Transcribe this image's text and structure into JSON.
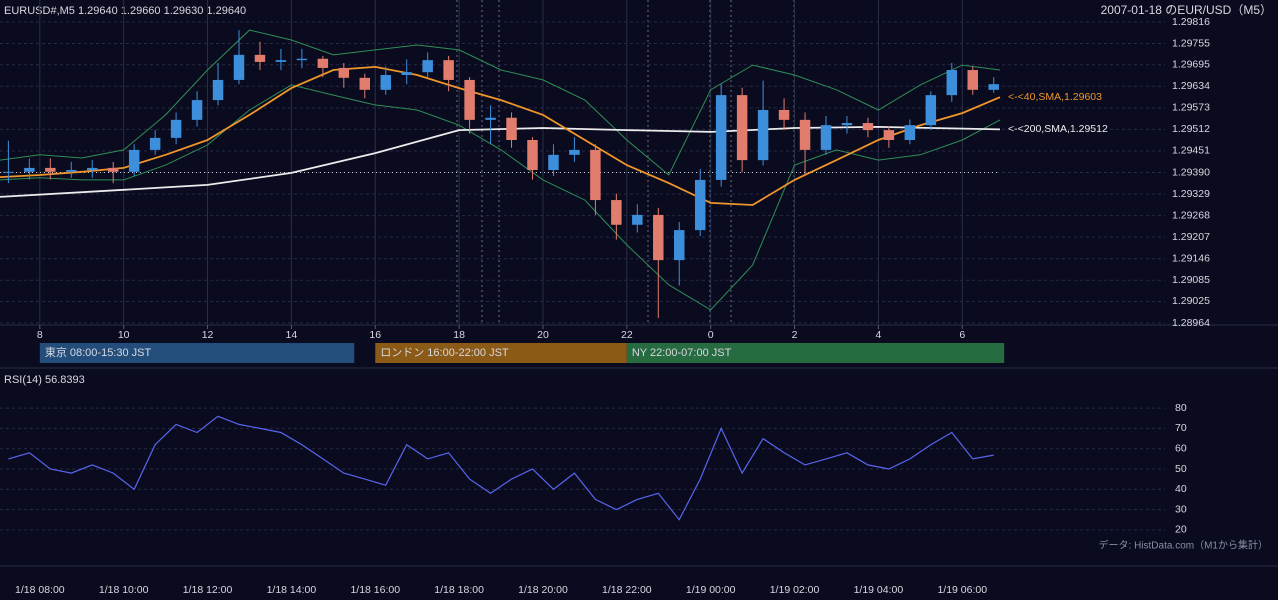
{
  "chart_data": [
    {
      "type": "candlestick",
      "header": "EURUSD#,M5 1.29640 1.29660 1.29630 1.29640",
      "title": "2007-01-18 のEUR/USD（M5）",
      "up_color": "#3d8fdc",
      "down_color": "#e27d6d",
      "x": [
        7.25,
        7.75,
        8.25,
        8.75,
        9.25,
        9.75,
        10.25,
        10.75,
        11.25,
        11.75,
        12.25,
        12.75,
        13.25,
        13.75,
        14.25,
        14.75,
        15.25,
        15.75,
        16.25,
        16.75,
        17.25,
        17.75,
        18.25,
        18.75,
        19.25,
        19.75,
        20.25,
        20.75,
        21.25,
        21.75,
        22.25,
        22.75,
        23.25,
        23.75,
        24.25,
        24.75,
        25.25,
        25.75,
        26.25,
        26.75,
        27.25,
        27.75,
        28.25,
        28.75,
        29.25,
        29.75,
        30.25,
        30.75
      ],
      "open": [
        1.2939,
        1.29392,
        1.29403,
        1.29392,
        1.29397,
        1.29403,
        1.29392,
        1.29454,
        1.29488,
        1.29539,
        1.29595,
        1.29652,
        1.29723,
        1.29703,
        1.29708,
        1.29712,
        1.29686,
        1.29658,
        1.29624,
        1.29666,
        1.29674,
        1.29708,
        1.29652,
        1.29539,
        1.29545,
        1.29482,
        1.29397,
        1.2944,
        1.29454,
        1.29312,
        1.29242,
        1.2927,
        1.29142,
        1.29227,
        1.29369,
        1.29609,
        1.29425,
        1.29567,
        1.29539,
        1.29454,
        1.29524,
        1.2953,
        1.2951,
        1.29482,
        1.29524,
        1.29609,
        1.2968,
        1.29624
      ],
      "high": [
        1.2948,
        1.2943,
        1.2943,
        1.2942,
        1.29425,
        1.2942,
        1.2947,
        1.2951,
        1.2956,
        1.2962,
        1.297,
        1.29793,
        1.2976,
        1.2974,
        1.2974,
        1.2972,
        1.297,
        1.2967,
        1.2969,
        1.2971,
        1.2973,
        1.2972,
        1.2966,
        1.2958,
        1.2956,
        1.2949,
        1.2947,
        1.2949,
        1.2947,
        1.2933,
        1.293,
        1.2929,
        1.2925,
        1.294,
        1.2964,
        1.2963,
        1.2965,
        1.296,
        1.2956,
        1.2955,
        1.2955,
        1.29545,
        1.2952,
        1.2954,
        1.2962,
        1.297,
        1.2969,
        1.2966
      ],
      "low": [
        1.2936,
        1.2937,
        1.2937,
        1.29375,
        1.29375,
        1.2936,
        1.2938,
        1.2944,
        1.2947,
        1.2952,
        1.2958,
        1.2964,
        1.2968,
        1.2968,
        1.29685,
        1.2966,
        1.2963,
        1.296,
        1.2961,
        1.2964,
        1.2966,
        1.2962,
        1.295,
        1.2947,
        1.2946,
        1.2937,
        1.2938,
        1.2942,
        1.2927,
        1.292,
        1.2922,
        1.28978,
        1.2907,
        1.2921,
        1.2935,
        1.2939,
        1.2941,
        1.2951,
        1.2938,
        1.2944,
        1.295,
        1.2949,
        1.2946,
        1.2947,
        1.2951,
        1.2959,
        1.2961,
        1.29615
      ],
      "close": [
        1.29392,
        1.29403,
        1.29392,
        1.29397,
        1.29403,
        1.29392,
        1.29454,
        1.29488,
        1.29539,
        1.29595,
        1.29652,
        1.29723,
        1.29703,
        1.29708,
        1.29712,
        1.29686,
        1.29658,
        1.29624,
        1.29666,
        1.29674,
        1.29708,
        1.29652,
        1.29539,
        1.29545,
        1.29482,
        1.29397,
        1.2944,
        1.29454,
        1.29312,
        1.29242,
        1.2927,
        1.29142,
        1.29227,
        1.29369,
        1.29609,
        1.29425,
        1.29567,
        1.29539,
        1.29454,
        1.29524,
        1.2953,
        1.2951,
        1.29482,
        1.29524,
        1.29609,
        1.2968,
        1.29624,
        1.2964
      ],
      "overlays": [
        {
          "color": "#2f8f58",
          "x": [
            7.05,
            8,
            9,
            10,
            11,
            12,
            13,
            14,
            15,
            16,
            17,
            18,
            19,
            20,
            21,
            22,
            23,
            24,
            25,
            26,
            27,
            28,
            29,
            30,
            30.9
          ],
          "values": [
            1.29425,
            1.2944,
            1.29431,
            1.29454,
            1.29553,
            1.2968,
            1.29793,
            1.29765,
            1.29723,
            1.29737,
            1.29751,
            1.29737,
            1.2968,
            1.29652,
            1.29595,
            1.29482,
            1.29383,
            1.29624,
            1.29694,
            1.29666,
            1.29624,
            1.29567,
            1.29638,
            1.29694,
            1.2968
          ]
        },
        {
          "color": "#2f8f58",
          "x": [
            7.05,
            8,
            9,
            10,
            11,
            12,
            13,
            14,
            15,
            16,
            17,
            18,
            19,
            20,
            21,
            22,
            23,
            24,
            25,
            26,
            27,
            28,
            29,
            30,
            30.9
          ],
          "values": [
            1.29369,
            1.29375,
            1.29369,
            1.29369,
            1.29411,
            1.29468,
            1.29567,
            1.29638,
            1.29609,
            1.29581,
            1.29567,
            1.29524,
            1.29454,
            1.29369,
            1.29312,
            1.29185,
            1.29072,
            1.29001,
            1.29128,
            1.29411,
            1.29454,
            1.29425,
            1.2944,
            1.29482,
            1.29539
          ]
        },
        {
          "color": "#ececec",
          "x": [
            7.05,
            10,
            12,
            14,
            16,
            18,
            20,
            22,
            24,
            26,
            28,
            30.9
          ],
          "values": [
            1.29321,
            1.29341,
            1.29355,
            1.29389,
            1.29445,
            1.2951,
            1.29516,
            1.2951,
            1.29505,
            1.29516,
            1.29519,
            1.29512
          ]
        },
        {
          "color": "#f0962a",
          "x": [
            7.05,
            8,
            9,
            10,
            11,
            12,
            13,
            14,
            15,
            16,
            17,
            18,
            19,
            20,
            21,
            22,
            23,
            24,
            25,
            26,
            27,
            28,
            29,
            30,
            30.9
          ],
          "values": [
            1.29377,
            1.29383,
            1.29392,
            1.29403,
            1.2944,
            1.29482,
            1.29553,
            1.29629,
            1.2968,
            1.29689,
            1.29666,
            1.29629,
            1.29595,
            1.29553,
            1.29482,
            1.29411,
            1.2936,
            1.29304,
            1.29298,
            1.29369,
            1.29425,
            1.29482,
            1.29524,
            1.29558,
            1.29603
          ]
        }
      ],
      "annotations": [
        {
          "text": "<-<40,SMA,1.29603",
          "color": "#f0962a",
          "value": 1.29603
        },
        {
          "text": "<-<200,SMA,1.29512",
          "color": "#ececec",
          "value": 1.29512
        }
      ],
      "reference_level": 1.2939,
      "xlim": [
        7.05,
        30.9
      ],
      "xticks": [
        8,
        10,
        12,
        14,
        16,
        18,
        20,
        22,
        {
          "value": 24,
          "label": "0"
        },
        {
          "value": 26,
          "label": "2"
        },
        {
          "value": 28,
          "label": "4"
        },
        {
          "value": 30,
          "label": "6"
        }
      ],
      "time_labels": [
        "1/18 08:00",
        "1/18 10:00",
        "1/18 12:00",
        "1/18 14:00",
        "1/18 16:00",
        "1/18 18:00",
        "1/18 20:00",
        "1/18 22:00",
        "1/19 00:00",
        "1/19 02:00",
        "1/19 04:00",
        "1/19 06:00"
      ],
      "ylim": [
        1.28964,
        1.29816
      ],
      "yticks": [
        {
          "value": 1.29816,
          "label": "1.29816"
        },
        {
          "value": 1.29755,
          "label": "1.29755"
        },
        {
          "value": 1.29695,
          "label": "1.29695"
        },
        {
          "value": 1.29634,
          "label": "1.29634"
        },
        {
          "value": 1.29573,
          "label": "1.29573"
        },
        {
          "value": 1.29512,
          "label": "1.29512"
        },
        {
          "value": 1.29451,
          "label": "1.29451"
        },
        {
          "value": 1.2939,
          "label": "1.29390"
        },
        {
          "value": 1.29329,
          "label": "1.29329"
        },
        {
          "value": 1.29268,
          "label": "1.29268"
        },
        {
          "value": 1.29207,
          "label": "1.29207"
        },
        {
          "value": 1.29146,
          "label": "1.29146"
        },
        {
          "value": 1.29085,
          "label": "1.29085"
        },
        {
          "value": 1.29025,
          "label": "1.29025"
        },
        {
          "value": 1.28964,
          "label": "1.28964"
        }
      ],
      "sessions": [
        {
          "label": "東京 08:00-15:30 JST",
          "start": 8,
          "end": 15.5,
          "color": "#234e7c"
        },
        {
          "label": "ロンドン 16:00-22:00 JST",
          "start": 16,
          "end": 22,
          "color": "#8a5a16"
        },
        {
          "label": "NY 22:00-07:00 JST",
          "start": 22,
          "end": 31,
          "color": "#276b40"
        }
      ]
    },
    {
      "type": "line",
      "title": "RSI(14) 56.8393",
      "source": "データ: HistData.com（M1から集計）",
      "color": "#5866f0",
      "x": [
        7.25,
        7.75,
        8.25,
        8.75,
        9.25,
        9.75,
        10.25,
        10.75,
        11.25,
        11.75,
        12.25,
        12.75,
        13.25,
        13.75,
        14.25,
        14.75,
        15.25,
        15.75,
        16.25,
        16.75,
        17.25,
        17.75,
        18.25,
        18.75,
        19.25,
        19.75,
        20.25,
        20.75,
        21.25,
        21.75,
        22.25,
        22.75,
        23.25,
        23.75,
        24.25,
        24.75,
        25.25,
        25.75,
        26.25,
        26.75,
        27.25,
        27.75,
        28.25,
        28.75,
        29.25,
        29.75,
        30.25,
        30.75
      ],
      "values": [
        55,
        58,
        50,
        48,
        52,
        48,
        40,
        62,
        72,
        68,
        76,
        72,
        70,
        68,
        62,
        55,
        48,
        45,
        42,
        62,
        55,
        58,
        45,
        38,
        45,
        50,
        40,
        48,
        35,
        30,
        35,
        38,
        25,
        45,
        70,
        48,
        65,
        58,
        52,
        55,
        58,
        52,
        50,
        55,
        62,
        68,
        55,
        56.8393
      ],
      "xlim": [
        7.05,
        30.9
      ],
      "ylim": [
        15,
        85
      ],
      "yticks": [
        20,
        30,
        40,
        50,
        60,
        70,
        80
      ]
    }
  ]
}
